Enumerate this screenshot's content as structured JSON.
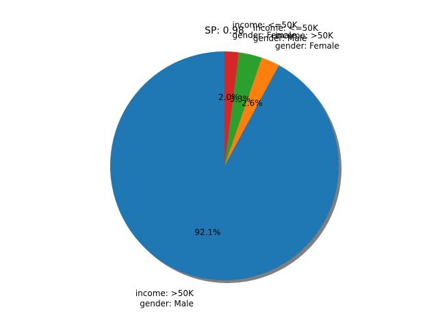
{
  "chart_data": {
    "type": "pie",
    "title": "SP: 0.98",
    "shadow": true,
    "start_angle_deg": 90,
    "direction": "counterclockwise",
    "slices": [
      {
        "label_lines": [
          "income: >50K",
          "gender: Male"
        ],
        "value": 92.1,
        "pct_label": "92.1%",
        "color": "#1f77b4"
      },
      {
        "label_lines": [
          "income: >50K",
          "gender: Female"
        ],
        "value": 2.6,
        "pct_label": "2.6%",
        "color": "#ff7f0e"
      },
      {
        "label_lines": [
          "income: <=50K",
          "gender: Male"
        ],
        "value": 3.3,
        "pct_label": "3.3%",
        "color": "#2ca02c"
      },
      {
        "label_lines": [
          "income: <=50K",
          "gender: Female"
        ],
        "value": 2.0,
        "pct_label": "2.0%",
        "color": "#d62728"
      }
    ]
  }
}
